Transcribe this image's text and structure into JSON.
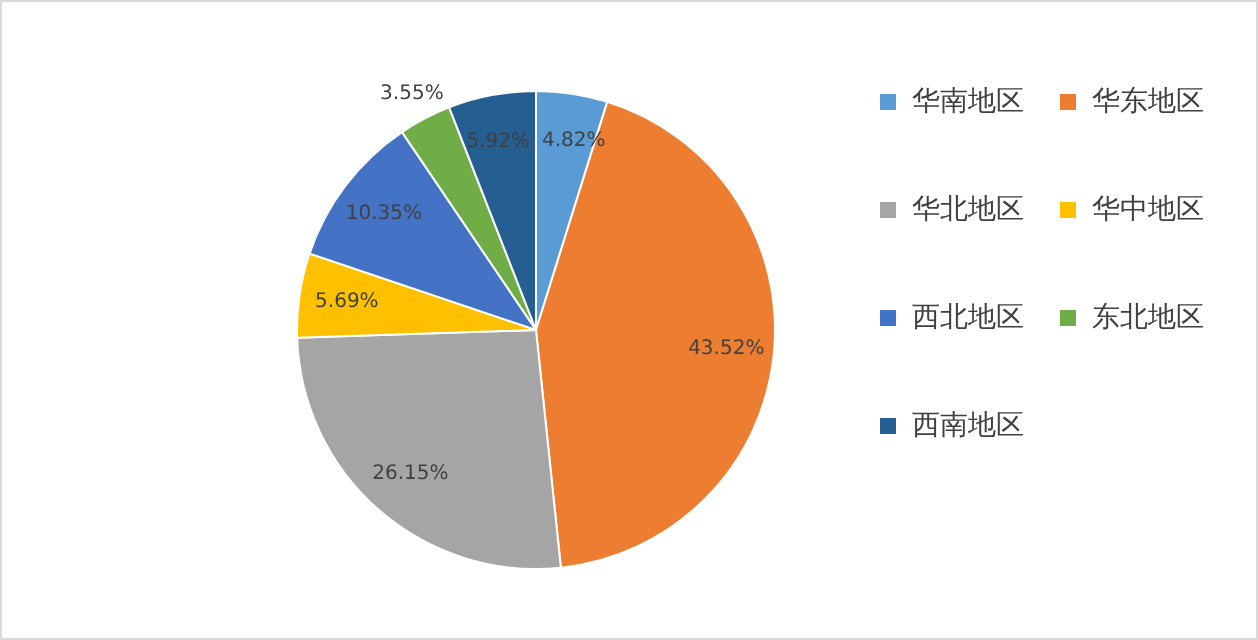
{
  "chart_data": {
    "type": "pie",
    "categories": [
      "华南地区",
      "华东地区",
      "华北地区",
      "华中地区",
      "西北地区",
      "东北地区",
      "西南地区"
    ],
    "values": [
      4.82,
      43.52,
      26.15,
      5.69,
      10.35,
      3.55,
      5.92
    ],
    "value_labels": [
      "4.82%",
      "43.52%",
      "26.15%",
      "5.69%",
      "10.35%",
      "3.55%",
      "5.92%"
    ],
    "colors": [
      "#5b9bd5",
      "#ed7d31",
      "#a5a5a5",
      "#ffc000",
      "#4472c4",
      "#70ad47",
      "#255e91"
    ],
    "legend": "right"
  }
}
